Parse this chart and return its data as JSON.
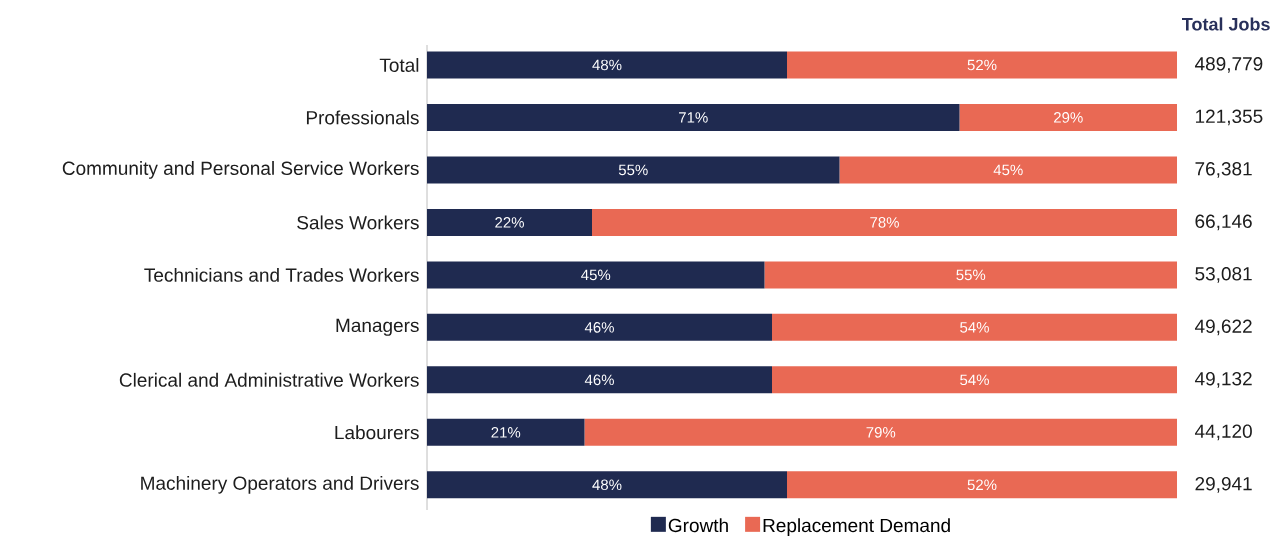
{
  "chart_data": {
    "type": "bar",
    "orientation": "horizontal",
    "stacked": true,
    "categories": [
      "Total",
      "Professionals",
      "Community and Personal Service Workers",
      "Sales Workers",
      "Technicians and Trades Workers",
      "Managers",
      "Clerical and Administrative Workers",
      "Labourers",
      "Machinery Operators and Drivers"
    ],
    "series": [
      {
        "name": "Growth",
        "color": "#1f2a50",
        "values": [
          48,
          71,
          55,
          22,
          45,
          46,
          46,
          21,
          48
        ],
        "value_labels": [
          "48%",
          "71%",
          "55%",
          "22%",
          "45%",
          "46%",
          "46%",
          "21%",
          "48%"
        ]
      },
      {
        "name": "Replacement Demand",
        "color": "#e96954",
        "values": [
          52,
          29,
          45,
          78,
          55,
          54,
          54,
          79,
          52
        ],
        "value_labels": [
          "52%",
          "29%",
          "45%",
          "78%",
          "55%",
          "54%",
          "54%",
          "79%",
          "52%"
        ]
      }
    ],
    "annotations": [
      "Total Jobs",
      "489,779",
      "121,355",
      "76,381",
      "66,146",
      "53,081",
      "49,622",
      "49,132",
      "44,120",
      "29,941"
    ],
    "xlim": [
      0,
      100
    ],
    "tick_labels": "y",
    "grid": false,
    "legend": "bottom"
  }
}
